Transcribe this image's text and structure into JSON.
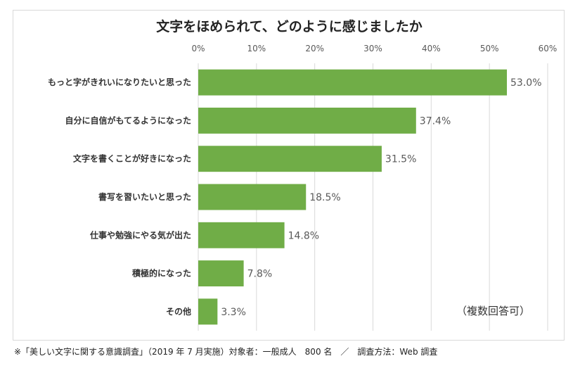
{
  "chart_data": {
    "type": "bar",
    "orientation": "horizontal",
    "title": "文字をほめられて、どのように感じましたか",
    "categories": [
      "もっと字がきれいになりたいと思った",
      "自分に自信がもてるようになった",
      "文字を書くことが好きになった",
      "書写を習いたいと思った",
      "仕事や勉強にやる気が出た",
      "積極的になった",
      "その他"
    ],
    "values": [
      53.0,
      37.4,
      31.5,
      18.5,
      14.8,
      7.8,
      3.3
    ],
    "value_labels": [
      "53.0%",
      "37.4%",
      "31.5%",
      "18.5%",
      "14.8%",
      "7.8%",
      "3.3%"
    ],
    "xlim": [
      0,
      60
    ],
    "x_ticks": [
      "0%",
      "10%",
      "20%",
      "30%",
      "40%",
      "50%",
      "60%"
    ],
    "axis_position": "top",
    "grid": true,
    "color": "#70ad47",
    "annotation": "（複数回答可）"
  },
  "footnote": "※「美しい文字に関する意識調査」（2019 年 7 月実施）対象者：一般成人　800 名　／　調査方法：Web 調査"
}
